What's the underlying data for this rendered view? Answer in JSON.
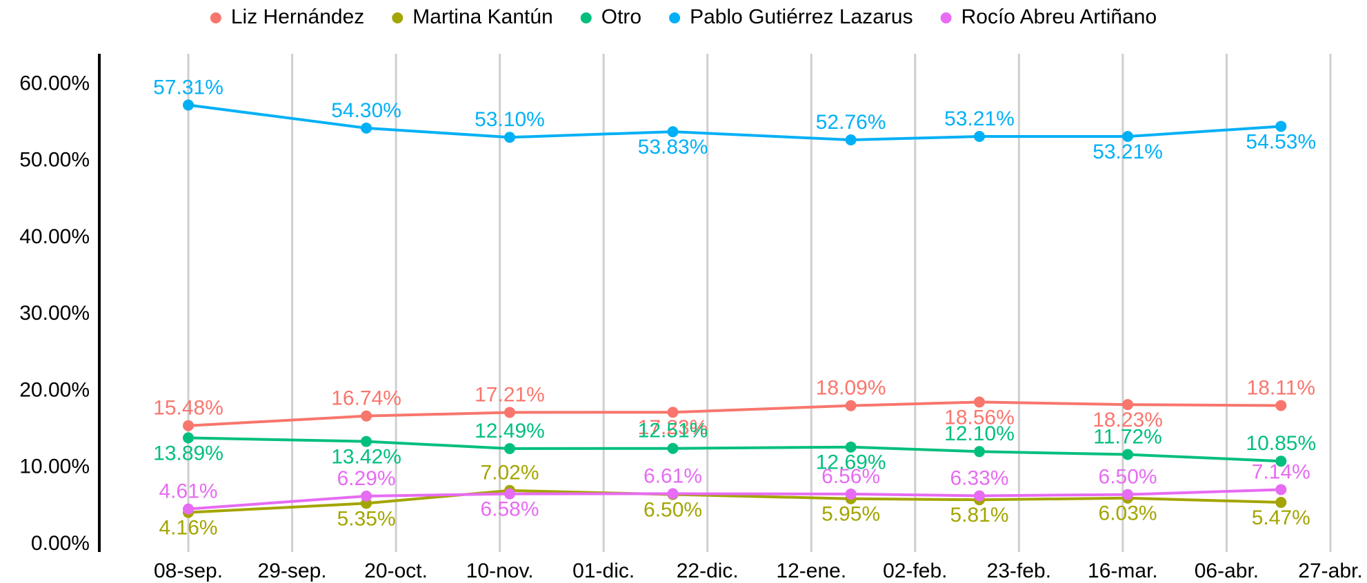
{
  "chart_data": {
    "type": "line",
    "x": [
      "08-sep.",
      "14-oct.",
      "12-nov.",
      "15-dic.",
      "20-ene.",
      "15-feb.",
      "17-mar.",
      "17-abr."
    ],
    "xlim": [
      "21-ago.",
      "03-may."
    ],
    "xticks": [
      "08-sep.",
      "29-sep.",
      "20-oct.",
      "10-nov.",
      "01-dic.",
      "22-dic.",
      "12-ene.",
      "02-feb.",
      "23-feb.",
      "16-mar.",
      "06-abr.",
      "27-abr."
    ],
    "ylim": [
      -1,
      64
    ],
    "yticks": [
      {
        "value": 0,
        "label": "0.00%"
      },
      {
        "value": 10,
        "label": "10.00%"
      },
      {
        "value": 20,
        "label": "20.00%"
      },
      {
        "value": 30,
        "label": "30.00%"
      },
      {
        "value": 40,
        "label": "40.00%"
      },
      {
        "value": 50,
        "label": "50.00%"
      },
      {
        "value": 60,
        "label": "60.00%"
      }
    ],
    "grid": true,
    "legend": "top",
    "series": [
      {
        "name": "Liz Hernández",
        "color": "#f8766d",
        "values": [
          15.48,
          16.74,
          17.21,
          17.23,
          18.09,
          18.56,
          18.23,
          18.11
        ],
        "value_labels": [
          "15.48%",
          "16.74%",
          "17.21%",
          "17.23%",
          "18.09%",
          "18.56%",
          "18.23%",
          "18.11%"
        ]
      },
      {
        "name": "Martina Kantún",
        "color": "#a3a500",
        "values": [
          4.16,
          5.35,
          7.02,
          6.5,
          5.95,
          5.81,
          6.03,
          5.47
        ],
        "value_labels": [
          "4.16%",
          "5.35%",
          "7.02%",
          "6.50%",
          "5.95%",
          "5.81%",
          "6.03%",
          "5.47%"
        ]
      },
      {
        "name": "Otro",
        "color": "#00bf7d",
        "values": [
          13.89,
          13.42,
          12.49,
          12.51,
          12.69,
          12.1,
          11.72,
          10.85
        ],
        "value_labels": [
          "13.89%",
          "13.42%",
          "12.49%",
          "12.51%",
          "12.69%",
          "12.10%",
          "11.72%",
          "10.85%"
        ]
      },
      {
        "name": "Pablo Gutiérrez Lazarus",
        "color": "#00b0f6",
        "values": [
          57.31,
          54.3,
          53.1,
          53.83,
          52.76,
          53.21,
          53.21,
          54.53
        ],
        "value_labels": [
          "57.31%",
          "54.30%",
          "53.10%",
          "53.83%",
          "52.76%",
          "53.21%",
          "53.21%",
          "54.53%"
        ]
      },
      {
        "name": "Rocío Abreu Artiñano",
        "color": "#e76bf3",
        "values": [
          4.61,
          6.29,
          6.58,
          6.61,
          6.56,
          6.33,
          6.5,
          7.14
        ],
        "value_labels": [
          "4.61%",
          "6.29%",
          "6.58%",
          "6.61%",
          "6.56%",
          "6.33%",
          "6.50%",
          "7.14%"
        ]
      }
    ]
  }
}
